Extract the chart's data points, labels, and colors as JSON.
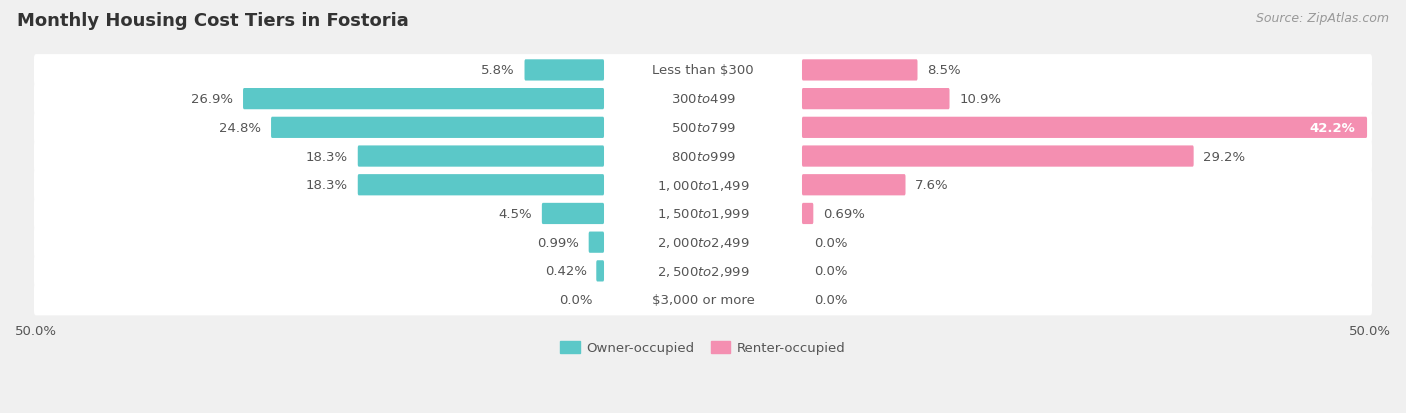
{
  "title": "Monthly Housing Cost Tiers in Fostoria",
  "source": "Source: ZipAtlas.com",
  "categories": [
    "Less than $300",
    "$300 to $499",
    "$500 to $799",
    "$800 to $999",
    "$1,000 to $1,499",
    "$1,500 to $1,999",
    "$2,000 to $2,499",
    "$2,500 to $2,999",
    "$3,000 or more"
  ],
  "owner_values": [
    5.8,
    26.9,
    24.8,
    18.3,
    18.3,
    4.5,
    0.99,
    0.42,
    0.0
  ],
  "renter_values": [
    8.5,
    10.9,
    42.2,
    29.2,
    7.6,
    0.69,
    0.0,
    0.0,
    0.0
  ],
  "owner_color": "#5bc8c8",
  "renter_color": "#f48fb1",
  "owner_label": "Owner-occupied",
  "renter_label": "Renter-occupied",
  "axis_min": -50.0,
  "axis_max": 50.0,
  "background_color": "#f0f0f0",
  "row_bg_color": "#ffffff",
  "title_fontsize": 13,
  "source_fontsize": 9,
  "label_fontsize": 9.5,
  "category_fontsize": 9.5,
  "label_color": "#555555",
  "title_color": "#333333",
  "source_color": "#999999"
}
